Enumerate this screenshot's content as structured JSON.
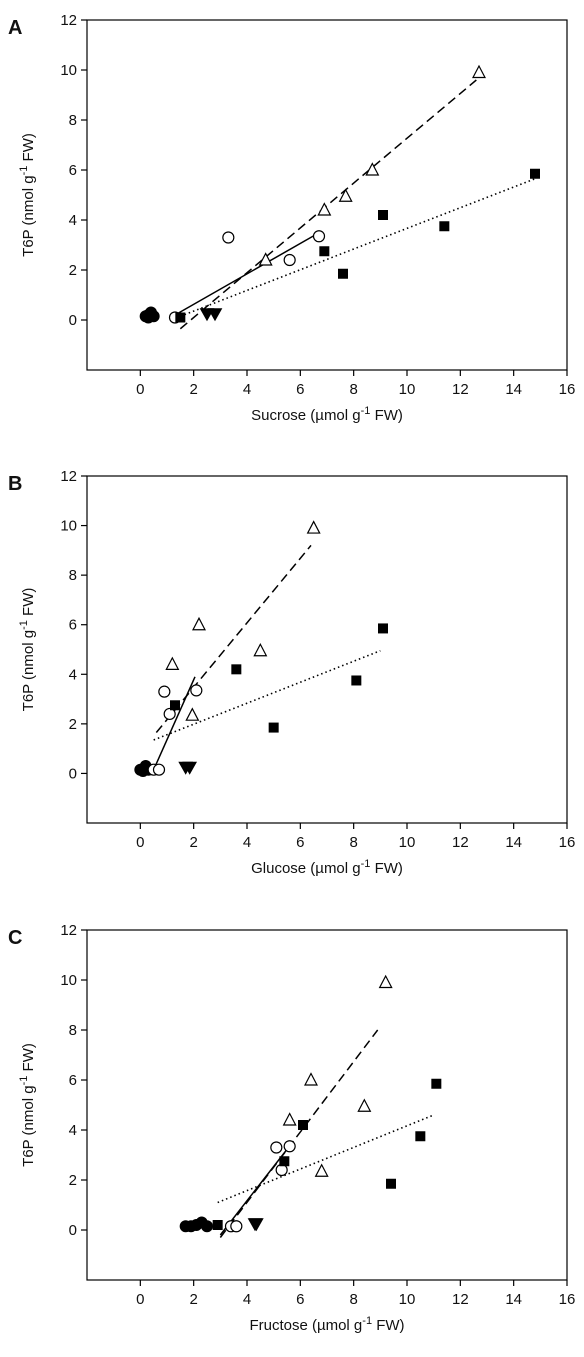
{
  "chart_data": [
    {
      "type": "scatter",
      "panel_label": "A",
      "xlabel": {
        "base": "Sucrose (µmol g",
        "sup": "-1",
        "tail": " FW)"
      },
      "ylabel": {
        "base": "T6P (nmol g",
        "sup": "-1",
        "tail": " FW)"
      },
      "xlim": [
        -2,
        16
      ],
      "ylim": [
        -2,
        12
      ],
      "xticks": [
        0,
        2,
        4,
        6,
        8,
        10,
        12,
        14,
        16
      ],
      "yticks": [
        0,
        2,
        4,
        6,
        8,
        10,
        12
      ],
      "grid": false,
      "series": [
        {
          "marker": "filled-circle",
          "points": [
            [
              0.2,
              0.15
            ],
            [
              0.3,
              0.1
            ],
            [
              0.4,
              0.3
            ],
            [
              0.5,
              0.15
            ],
            [
              0.3,
              0.2
            ]
          ]
        },
        {
          "marker": "open-circle",
          "points": [
            [
              1.3,
              0.1
            ],
            [
              3.3,
              3.3
            ],
            [
              5.6,
              2.4
            ],
            [
              6.7,
              3.35
            ]
          ]
        },
        {
          "marker": "filled-square",
          "points": [
            [
              1.5,
              0.1
            ],
            [
              6.9,
              2.75
            ],
            [
              7.6,
              1.85
            ],
            [
              9.1,
              4.2
            ],
            [
              11.4,
              3.75
            ],
            [
              14.8,
              5.85
            ]
          ]
        },
        {
          "marker": "open-triangle",
          "points": [
            [
              4.7,
              2.4
            ],
            [
              6.9,
              4.4
            ],
            [
              7.7,
              4.95
            ],
            [
              8.7,
              6.0
            ],
            [
              12.7,
              9.9
            ]
          ]
        },
        {
          "marker": "filled-triangle-down",
          "points": [
            [
              2.5,
              0.25
            ],
            [
              2.8,
              0.25
            ]
          ]
        }
      ],
      "fits": [
        {
          "style": "solid",
          "from": [
            1.3,
            0.2
          ],
          "to": [
            6.8,
            3.55
          ]
        },
        {
          "style": "dashed",
          "from": [
            1.5,
            -0.35
          ],
          "to": [
            12.6,
            9.6
          ]
        },
        {
          "style": "dotted",
          "from": [
            1.5,
            0.15
          ],
          "to": [
            14.8,
            5.65
          ]
        }
      ]
    },
    {
      "type": "scatter",
      "panel_label": "B",
      "xlabel": {
        "base": "Glucose (µmol g",
        "sup": "-1",
        "tail": " FW)"
      },
      "ylabel": {
        "base": "T6P (nmol g",
        "sup": "-1",
        "tail": " FW)"
      },
      "xlim": [
        -2,
        16
      ],
      "ylim": [
        -2,
        12
      ],
      "xticks": [
        0,
        2,
        4,
        6,
        8,
        10,
        12,
        14,
        16
      ],
      "yticks": [
        0,
        2,
        4,
        6,
        8,
        10,
        12
      ],
      "grid": false,
      "series": [
        {
          "marker": "filled-circle",
          "points": [
            [
              0.0,
              0.15
            ],
            [
              0.1,
              0.1
            ],
            [
              0.2,
              0.3
            ],
            [
              0.3,
              0.15
            ],
            [
              0.15,
              0.2
            ]
          ]
        },
        {
          "marker": "open-circle",
          "points": [
            [
              0.5,
              0.15
            ],
            [
              0.7,
              0.15
            ],
            [
              0.9,
              3.3
            ],
            [
              1.1,
              2.4
            ],
            [
              2.1,
              3.35
            ]
          ]
        },
        {
          "marker": "filled-square",
          "points": [
            [
              1.3,
              2.75
            ],
            [
              3.6,
              4.2
            ],
            [
              5.0,
              1.85
            ],
            [
              8.1,
              3.75
            ],
            [
              9.1,
              5.85
            ]
          ]
        },
        {
          "marker": "open-triangle",
          "points": [
            [
              1.2,
              4.4
            ],
            [
              1.95,
              2.35
            ],
            [
              2.2,
              6.0
            ],
            [
              4.5,
              4.95
            ],
            [
              6.5,
              9.9
            ]
          ]
        },
        {
          "marker": "filled-triangle-down",
          "points": [
            [
              1.7,
              0.25
            ],
            [
              1.85,
              0.25
            ]
          ]
        }
      ],
      "fits": [
        {
          "style": "solid",
          "from": [
            0.5,
            0.15
          ],
          "to": [
            2.05,
            3.9
          ]
        },
        {
          "style": "dashed",
          "from": [
            0.6,
            1.65
          ],
          "to": [
            6.4,
            9.2
          ]
        },
        {
          "style": "dotted",
          "from": [
            0.5,
            1.35
          ],
          "to": [
            9.0,
            4.95
          ]
        }
      ]
    },
    {
      "type": "scatter",
      "panel_label": "C",
      "xlabel": {
        "base": "Fructose (µmol g",
        "sup": "-1",
        "tail": " FW)"
      },
      "ylabel": {
        "base": "T6P (nmol g",
        "sup": "-1",
        "tail": " FW)"
      },
      "xlim": [
        -2,
        16
      ],
      "ylim": [
        -2,
        12
      ],
      "xticks": [
        0,
        2,
        4,
        6,
        8,
        10,
        12,
        14,
        16
      ],
      "yticks": [
        0,
        2,
        4,
        6,
        8,
        10,
        12
      ],
      "grid": false,
      "series": [
        {
          "marker": "filled-circle",
          "points": [
            [
              1.7,
              0.15
            ],
            [
              1.9,
              0.15
            ],
            [
              2.1,
              0.2
            ],
            [
              2.3,
              0.3
            ],
            [
              2.5,
              0.15
            ]
          ]
        },
        {
          "marker": "open-circle",
          "points": [
            [
              3.4,
              0.15
            ],
            [
              3.6,
              0.15
            ],
            [
              5.1,
              3.3
            ],
            [
              5.3,
              2.4
            ],
            [
              5.6,
              3.35
            ]
          ]
        },
        {
          "marker": "filled-square",
          "points": [
            [
              2.9,
              0.2
            ],
            [
              5.4,
              2.75
            ],
            [
              6.1,
              4.2
            ],
            [
              9.4,
              1.85
            ],
            [
              10.5,
              3.75
            ],
            [
              11.1,
              5.85
            ]
          ]
        },
        {
          "marker": "open-triangle",
          "points": [
            [
              5.6,
              4.4
            ],
            [
              6.4,
              6.0
            ],
            [
              6.8,
              2.35
            ],
            [
              8.4,
              4.95
            ],
            [
              9.2,
              9.9
            ]
          ]
        },
        {
          "marker": "filled-triangle-down",
          "points": [
            [
              4.3,
              0.25
            ],
            [
              4.35,
              0.25
            ]
          ]
        }
      ],
      "fits": [
        {
          "style": "solid",
          "from": [
            3.0,
            -0.2
          ],
          "to": [
            5.7,
            3.5
          ]
        },
        {
          "style": "dashed",
          "from": [
            3.0,
            -0.3
          ],
          "to": [
            8.9,
            8.0
          ]
        },
        {
          "style": "dotted",
          "from": [
            2.9,
            1.1
          ],
          "to": [
            11.0,
            4.6
          ]
        }
      ]
    }
  ]
}
